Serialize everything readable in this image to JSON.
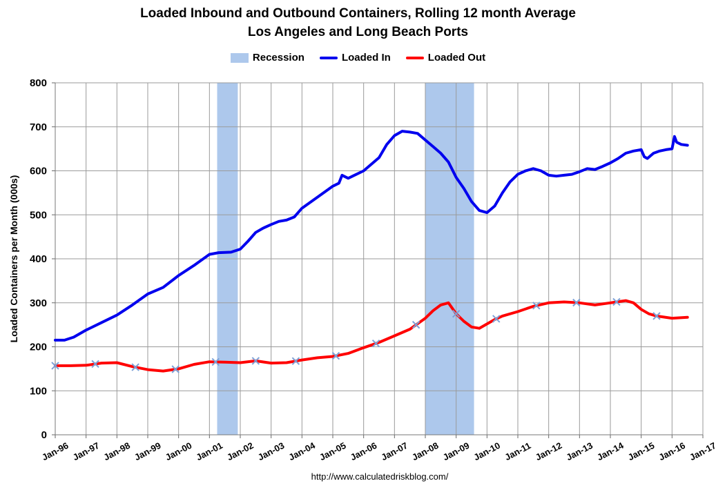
{
  "chart_data": {
    "type": "line",
    "title": "Loaded Inbound and Outbound Containers, Rolling 12 month Average",
    "subtitle": "Los Angeles and Long Beach Ports",
    "ylabel": "Loaded Containers per Month (000s)",
    "xlabel": "",
    "ylim": [
      0,
      800
    ],
    "yticks": [
      0,
      100,
      200,
      300,
      400,
      500,
      600,
      700,
      800
    ],
    "xlim": [
      1996.0,
      2017.0
    ],
    "xtick_labels": [
      "Jan-96",
      "Jan-97",
      "Jan-98",
      "Jan-99",
      "Jan-00",
      "Jan-01",
      "Jan-02",
      "Jan-03",
      "Jan-04",
      "Jan-05",
      "Jan-06",
      "Jan-07",
      "Jan-08",
      "Jan-09",
      "Jan-10",
      "Jan-11",
      "Jan-12",
      "Jan-13",
      "Jan-14",
      "Jan-15",
      "Jan-16",
      "Jan-17"
    ],
    "grid": true,
    "legend_position": "top",
    "recessions": [
      {
        "start": 2001.25,
        "end": 2001.92
      },
      {
        "start": 2008.0,
        "end": 2009.58
      }
    ],
    "series": [
      {
        "name": "Recession",
        "kind": "band",
        "color": "#adc8ec"
      },
      {
        "name": "Loaded In",
        "color": "#0000ee",
        "points": [
          [
            1996.0,
            215
          ],
          [
            1996.3,
            215
          ],
          [
            1996.6,
            222
          ],
          [
            1997.0,
            238
          ],
          [
            1997.5,
            255
          ],
          [
            1998.0,
            272
          ],
          [
            1998.5,
            295
          ],
          [
            1999.0,
            320
          ],
          [
            1999.5,
            335
          ],
          [
            2000.0,
            362
          ],
          [
            2000.5,
            385
          ],
          [
            2001.0,
            410
          ],
          [
            2001.3,
            414
          ],
          [
            2001.7,
            415
          ],
          [
            2002.0,
            422
          ],
          [
            2002.25,
            440
          ],
          [
            2002.5,
            460
          ],
          [
            2002.75,
            470
          ],
          [
            2003.0,
            478
          ],
          [
            2003.25,
            485
          ],
          [
            2003.5,
            488
          ],
          [
            2003.75,
            495
          ],
          [
            2004.0,
            515
          ],
          [
            2004.5,
            540
          ],
          [
            2005.0,
            565
          ],
          [
            2005.2,
            572
          ],
          [
            2005.3,
            590
          ],
          [
            2005.5,
            583
          ],
          [
            2006.0,
            600
          ],
          [
            2006.5,
            630
          ],
          [
            2006.75,
            660
          ],
          [
            2007.0,
            680
          ],
          [
            2007.25,
            690
          ],
          [
            2007.5,
            688
          ],
          [
            2007.75,
            685
          ],
          [
            2008.0,
            670
          ],
          [
            2008.25,
            655
          ],
          [
            2008.5,
            640
          ],
          [
            2008.75,
            620
          ],
          [
            2009.0,
            585
          ],
          [
            2009.25,
            560
          ],
          [
            2009.5,
            530
          ],
          [
            2009.75,
            510
          ],
          [
            2010.0,
            505
          ],
          [
            2010.25,
            520
          ],
          [
            2010.5,
            550
          ],
          [
            2010.75,
            575
          ],
          [
            2011.0,
            592
          ],
          [
            2011.25,
            600
          ],
          [
            2011.5,
            605
          ],
          [
            2011.75,
            600
          ],
          [
            2012.0,
            590
          ],
          [
            2012.25,
            588
          ],
          [
            2012.5,
            590
          ],
          [
            2012.75,
            592
          ],
          [
            2013.0,
            598
          ],
          [
            2013.25,
            605
          ],
          [
            2013.5,
            603
          ],
          [
            2013.75,
            610
          ],
          [
            2014.0,
            618
          ],
          [
            2014.25,
            628
          ],
          [
            2014.5,
            640
          ],
          [
            2014.75,
            645
          ],
          [
            2015.0,
            648
          ],
          [
            2015.1,
            632
          ],
          [
            2015.2,
            628
          ],
          [
            2015.4,
            640
          ],
          [
            2015.6,
            645
          ],
          [
            2015.8,
            648
          ],
          [
            2016.0,
            650
          ],
          [
            2016.08,
            678
          ],
          [
            2016.15,
            665
          ],
          [
            2016.3,
            660
          ],
          [
            2016.5,
            658
          ]
        ]
      },
      {
        "name": "Loaded Out",
        "color": "#ff0000",
        "points": [
          [
            1996.0,
            157
          ],
          [
            1996.5,
            157
          ],
          [
            1997.0,
            158
          ],
          [
            1997.5,
            163
          ],
          [
            1998.0,
            164
          ],
          [
            1998.5,
            155
          ],
          [
            1999.0,
            148
          ],
          [
            1999.5,
            145
          ],
          [
            2000.0,
            150
          ],
          [
            2000.5,
            160
          ],
          [
            2001.0,
            166
          ],
          [
            2001.5,
            165
          ],
          [
            2002.0,
            164
          ],
          [
            2002.5,
            168
          ],
          [
            2003.0,
            163
          ],
          [
            2003.5,
            164
          ],
          [
            2004.0,
            170
          ],
          [
            2004.5,
            175
          ],
          [
            2005.0,
            178
          ],
          [
            2005.5,
            185
          ],
          [
            2006.0,
            198
          ],
          [
            2006.5,
            210
          ],
          [
            2007.0,
            225
          ],
          [
            2007.5,
            240
          ],
          [
            2008.0,
            265
          ],
          [
            2008.25,
            282
          ],
          [
            2008.5,
            295
          ],
          [
            2008.75,
            300
          ],
          [
            2009.0,
            275
          ],
          [
            2009.25,
            258
          ],
          [
            2009.5,
            245
          ],
          [
            2009.75,
            242
          ],
          [
            2010.0,
            252
          ],
          [
            2010.25,
            262
          ],
          [
            2010.5,
            270
          ],
          [
            2011.0,
            280
          ],
          [
            2011.5,
            292
          ],
          [
            2012.0,
            300
          ],
          [
            2012.5,
            302
          ],
          [
            2013.0,
            300
          ],
          [
            2013.5,
            295
          ],
          [
            2014.0,
            300
          ],
          [
            2014.5,
            305
          ],
          [
            2014.75,
            300
          ],
          [
            2015.0,
            285
          ],
          [
            2015.25,
            275
          ],
          [
            2015.5,
            270
          ],
          [
            2016.0,
            265
          ],
          [
            2016.5,
            267
          ]
        ]
      }
    ],
    "marker_years": [
      1996.0,
      1997.3,
      1998.6,
      1999.9,
      2001.2,
      2002.5,
      2003.8,
      2005.1,
      2006.4,
      2007.7,
      2009.0,
      2010.3,
      2011.6,
      2012.9,
      2014.2,
      2015.5
    ]
  },
  "footer": {
    "url": "http://www.calculatedriskblog.com/"
  }
}
